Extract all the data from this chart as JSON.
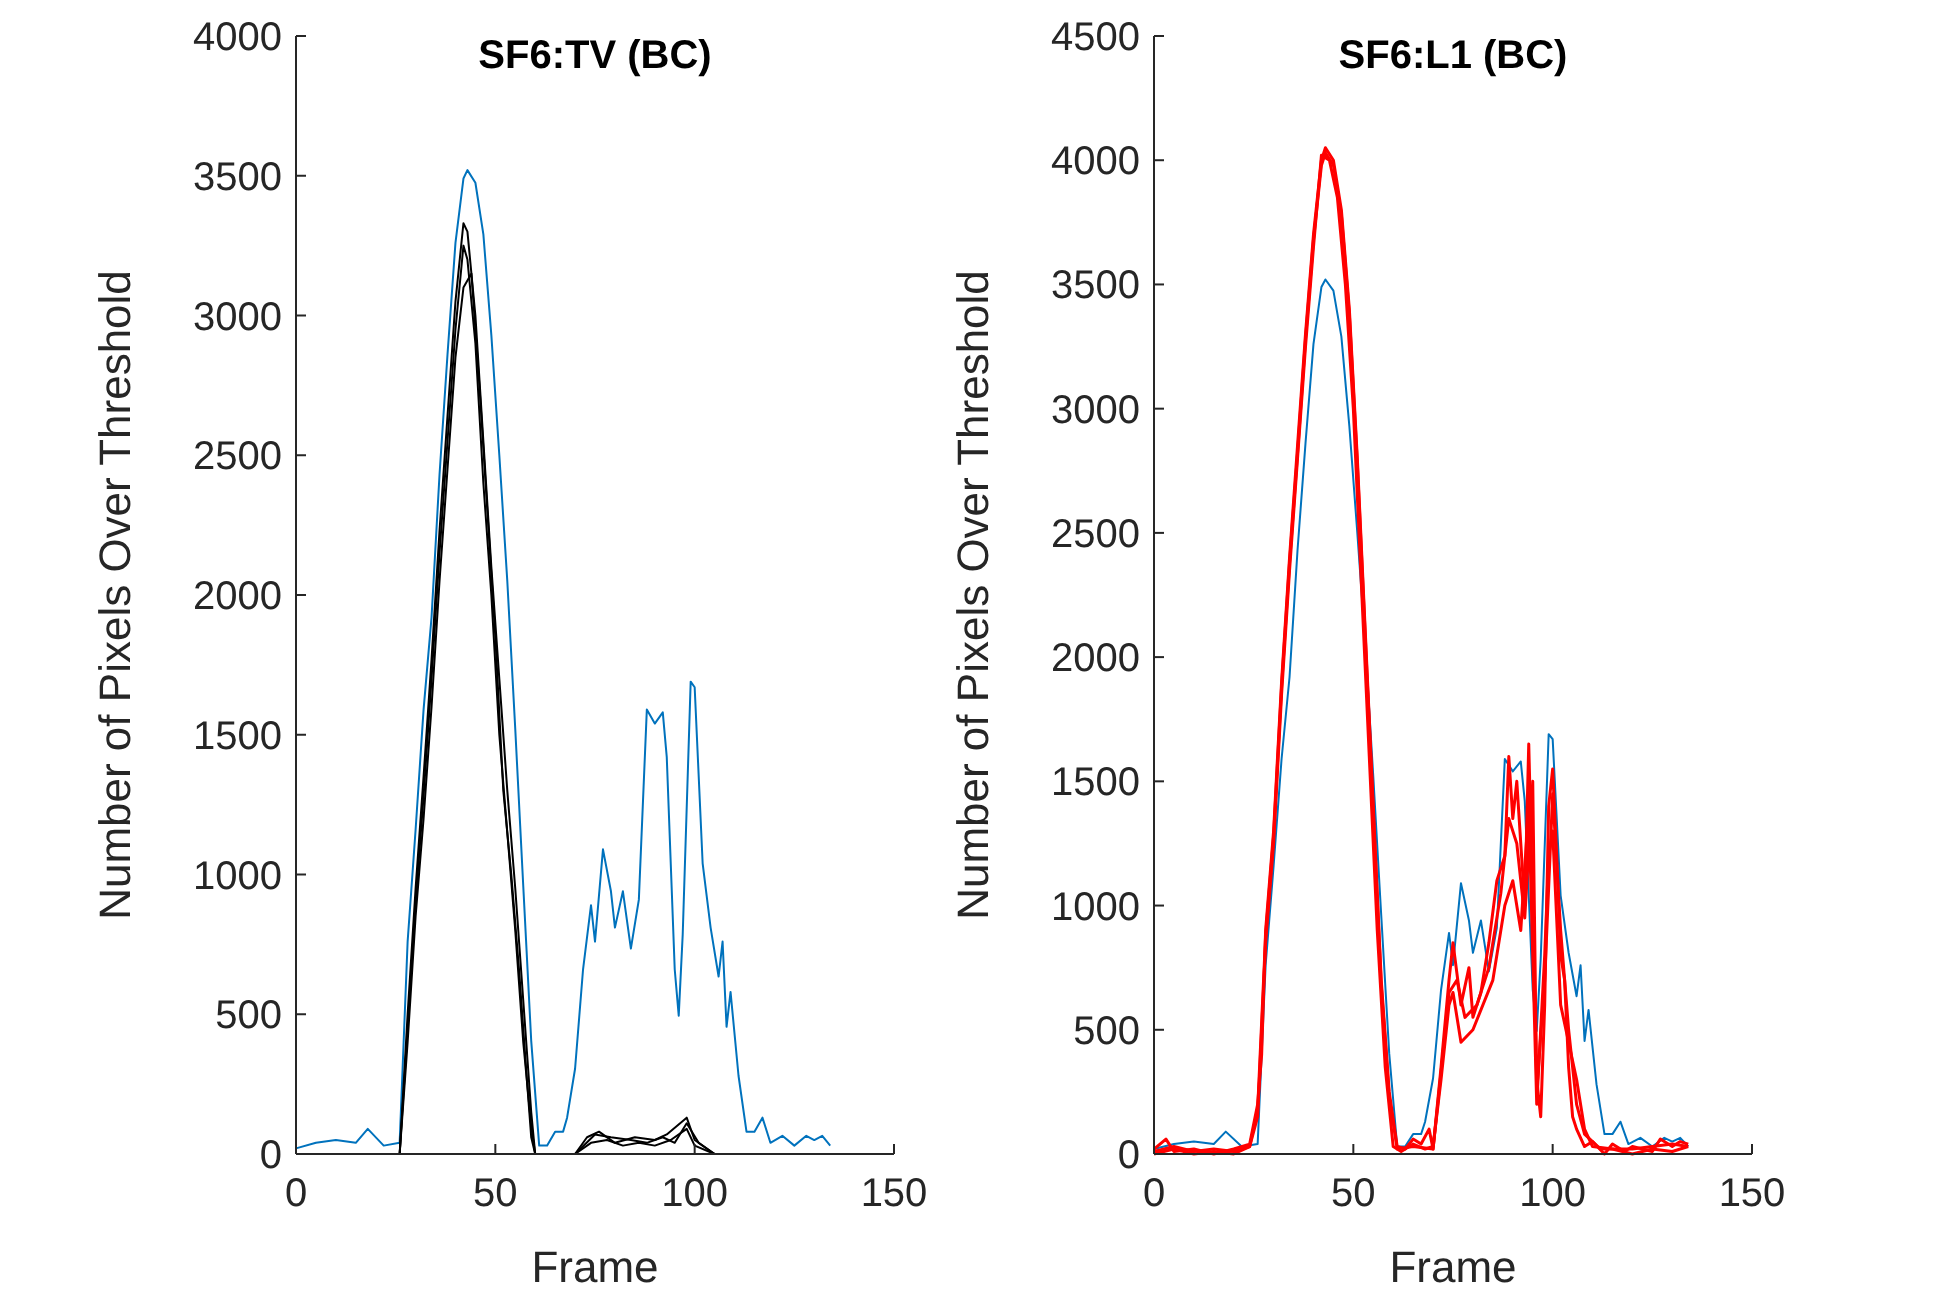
{
  "chart_data": [
    {
      "type": "line",
      "title": "SF6:TV (BC)",
      "xlabel": "Frame",
      "ylabel": "Number of Pixels Over Threshold",
      "xlim": [
        0,
        150
      ],
      "xticks": [
        0,
        50,
        100,
        150
      ],
      "ylim": [
        0,
        4000
      ],
      "yticks": [
        0,
        500,
        1000,
        1500,
        2000,
        2500,
        3000,
        3500,
        4000
      ],
      "grid": false,
      "line_style": "solid",
      "marker": "none",
      "series": [
        {
          "color": "#0072bd",
          "x": [
            0,
            5,
            10,
            15,
            18,
            22,
            26,
            27,
            28,
            30,
            32,
            34,
            36,
            38,
            40,
            42,
            43,
            45,
            47,
            49,
            51,
            53,
            55,
            57,
            59,
            61,
            63,
            65,
            67,
            68,
            70,
            72,
            74,
            75,
            77,
            79,
            80,
            82,
            84,
            86,
            88,
            90,
            92,
            93,
            95,
            96,
            97,
            99,
            100,
            102,
            104,
            106,
            107,
            108,
            109,
            111,
            113,
            115,
            117,
            119,
            122,
            125,
            128,
            130,
            132,
            134
          ],
          "values": [
            20,
            40,
            50,
            40,
            90,
            30,
            40,
            400,
            760,
            1160,
            1590,
            1920,
            2430,
            2860,
            3260,
            3490,
            3520,
            3475,
            3290,
            2930,
            2500,
            2050,
            1520,
            960,
            405,
            30,
            30,
            80,
            80,
            130,
            305,
            660,
            890,
            760,
            1090,
            940,
            810,
            940,
            735,
            910,
            1590,
            1540,
            1580,
            1420,
            660,
            495,
            785,
            1690,
            1670,
            1040,
            810,
            635,
            760,
            455,
            580,
            280,
            80,
            80,
            130,
            40,
            65,
            30,
            65,
            50,
            65,
            30
          ]
        },
        {
          "color": "#000000",
          "x": [
            0,
            25,
            26,
            28,
            30,
            32,
            34,
            36,
            38,
            40,
            42,
            43,
            45,
            47,
            49,
            51,
            53,
            55,
            57,
            59,
            60,
            70,
            73,
            76,
            80,
            85,
            90,
            93,
            98,
            100,
            105,
            134
          ],
          "values": [
            0,
            0,
            0,
            500,
            950,
            1350,
            1770,
            2230,
            2640,
            3050,
            3330,
            3300,
            3000,
            2550,
            2100,
            1700,
            1300,
            950,
            550,
            150,
            0,
            0,
            60,
            80,
            40,
            60,
            50,
            70,
            130,
            50,
            0,
            0
          ]
        },
        {
          "color": "#000000",
          "x": [
            0,
            25,
            26,
            28,
            30,
            32,
            34,
            36,
            38,
            40,
            42,
            44,
            46,
            48,
            50,
            52,
            54,
            56,
            58,
            59,
            60,
            70,
            74,
            78,
            82,
            86,
            90,
            94,
            98,
            100,
            105,
            134
          ],
          "values": [
            0,
            0,
            0,
            400,
            850,
            1200,
            1600,
            2050,
            2450,
            2850,
            3100,
            3150,
            2750,
            2300,
            1850,
            1300,
            1000,
            650,
            250,
            60,
            0,
            0,
            40,
            50,
            30,
            40,
            30,
            50,
            90,
            30,
            0,
            0
          ]
        },
        {
          "color": "#000000",
          "x": [
            0,
            25,
            26,
            28,
            30,
            32,
            34,
            36,
            38,
            40,
            42,
            43,
            45,
            47,
            49,
            51,
            53,
            55,
            57,
            59,
            60,
            70,
            75,
            79,
            84,
            88,
            92,
            95,
            98,
            101,
            105,
            134
          ],
          "values": [
            0,
            0,
            0,
            450,
            900,
            1280,
            1700,
            2150,
            2550,
            2950,
            3250,
            3200,
            2900,
            2400,
            2000,
            1500,
            1150,
            800,
            400,
            100,
            0,
            0,
            70,
            60,
            50,
            40,
            60,
            40,
            110,
            40,
            0,
            0
          ]
        }
      ]
    },
    {
      "type": "line",
      "title": "SF6:L1 (BC)",
      "xlabel": "Frame",
      "ylabel": "Number of Pixels Over Threshold",
      "xlim": [
        0,
        150
      ],
      "xticks": [
        0,
        50,
        100,
        150
      ],
      "ylim": [
        0,
        4500
      ],
      "yticks": [
        0,
        500,
        1000,
        1500,
        2000,
        2500,
        3000,
        3500,
        4000,
        4500
      ],
      "grid": false,
      "line_style": "solid",
      "marker": "none",
      "series": [
        {
          "color": "#0072bd",
          "x": [
            0,
            5,
            10,
            15,
            18,
            22,
            26,
            27,
            28,
            30,
            32,
            34,
            36,
            38,
            40,
            42,
            43,
            45,
            47,
            49,
            51,
            53,
            55,
            57,
            59,
            61,
            63,
            65,
            67,
            68,
            70,
            72,
            74,
            75,
            77,
            79,
            80,
            82,
            84,
            86,
            88,
            90,
            92,
            93,
            95,
            96,
            97,
            99,
            100,
            102,
            104,
            106,
            107,
            108,
            109,
            111,
            113,
            115,
            117,
            119,
            122,
            125,
            128,
            130,
            132,
            134
          ],
          "values": [
            20,
            40,
            50,
            40,
            90,
            30,
            40,
            400,
            760,
            1160,
            1590,
            1920,
            2430,
            2860,
            3260,
            3490,
            3520,
            3475,
            3290,
            2930,
            2500,
            2050,
            1520,
            960,
            405,
            30,
            30,
            80,
            80,
            130,
            305,
            660,
            890,
            760,
            1090,
            940,
            810,
            940,
            735,
            910,
            1590,
            1540,
            1580,
            1420,
            660,
            495,
            785,
            1690,
            1670,
            1040,
            810,
            635,
            760,
            455,
            580,
            280,
            80,
            80,
            130,
            40,
            65,
            30,
            65,
            50,
            65,
            30
          ]
        },
        {
          "color": "#ff0000",
          "x": [
            0,
            3,
            5,
            10,
            15,
            20,
            24,
            26,
            27,
            28,
            30,
            32,
            34,
            36,
            38,
            40,
            42,
            43,
            45,
            47,
            49,
            51,
            53,
            55,
            57,
            59,
            61,
            63,
            65,
            67,
            69,
            70,
            72,
            74,
            75,
            77,
            79,
            80,
            82,
            84,
            86,
            88,
            89,
            90,
            91,
            93,
            94,
            95,
            96,
            97,
            98,
            99,
            100,
            101,
            102,
            103,
            104,
            105,
            106,
            108,
            110,
            113,
            115,
            118,
            120,
            125,
            127,
            130,
            132,
            134
          ],
          "values": [
            20,
            60,
            10,
            20,
            0,
            20,
            40,
            200,
            400,
            900,
            1300,
            1900,
            2400,
            2850,
            3300,
            3700,
            4000,
            4050,
            4000,
            3800,
            3400,
            2800,
            2100,
            1400,
            700,
            250,
            30,
            20,
            60,
            40,
            100,
            20,
            350,
            700,
            850,
            600,
            750,
            550,
            650,
            850,
            1100,
            1200,
            1600,
            1350,
            1500,
            1000,
            1650,
            1000,
            300,
            150,
            600,
            1400,
            1550,
            1200,
            800,
            700,
            350,
            150,
            100,
            30,
            50,
            0,
            40,
            10,
            30,
            10,
            60,
            30,
            50,
            40
          ]
        },
        {
          "color": "#ff0000",
          "x": [
            0,
            5,
            10,
            15,
            20,
            24,
            26,
            28,
            30,
            32,
            34,
            36,
            38,
            40,
            42,
            44,
            46,
            48,
            50,
            52,
            54,
            56,
            58,
            60,
            62,
            65,
            68,
            70,
            72,
            74,
            75,
            77,
            80,
            85,
            88,
            90,
            92,
            94,
            96,
            98,
            99,
            100,
            102,
            104,
            106,
            108,
            110,
            115,
            120,
            125,
            130,
            134
          ],
          "values": [
            0,
            20,
            0,
            10,
            0,
            30,
            150,
            850,
            1250,
            1850,
            2350,
            2800,
            3250,
            3650,
            4020,
            4000,
            3850,
            3500,
            3000,
            2300,
            1600,
            900,
            350,
            30,
            10,
            40,
            20,
            30,
            300,
            600,
            650,
            450,
            500,
            700,
            1000,
            1100,
            900,
            1400,
            200,
            800,
            1200,
            1300,
            600,
            450,
            300,
            100,
            30,
            20,
            0,
            20,
            10,
            30
          ]
        },
        {
          "color": "#ff0000",
          "x": [
            0,
            5,
            10,
            15,
            20,
            24,
            26,
            28,
            30,
            32,
            34,
            36,
            38,
            40,
            42,
            43,
            45,
            47,
            49,
            51,
            53,
            55,
            57,
            59,
            61,
            65,
            70,
            72,
            74,
            76,
            78,
            81,
            84,
            87,
            89,
            91,
            93,
            95,
            96,
            98,
            100,
            102,
            104,
            106,
            108,
            112,
            120,
            130,
            134
          ],
          "values": [
            10,
            30,
            10,
            20,
            10,
            30,
            180,
            880,
            1280,
            1880,
            2380,
            2820,
            3280,
            3680,
            3980,
            4030,
            3980,
            3780,
            3380,
            2780,
            2080,
            1380,
            680,
            230,
            20,
            30,
            20,
            330,
            650,
            700,
            550,
            600,
            750,
            1050,
            1350,
            1250,
            950,
            1500,
            250,
            700,
            1450,
            900,
            500,
            200,
            80,
            20,
            20,
            40,
            30
          ]
        }
      ]
    }
  ]
}
